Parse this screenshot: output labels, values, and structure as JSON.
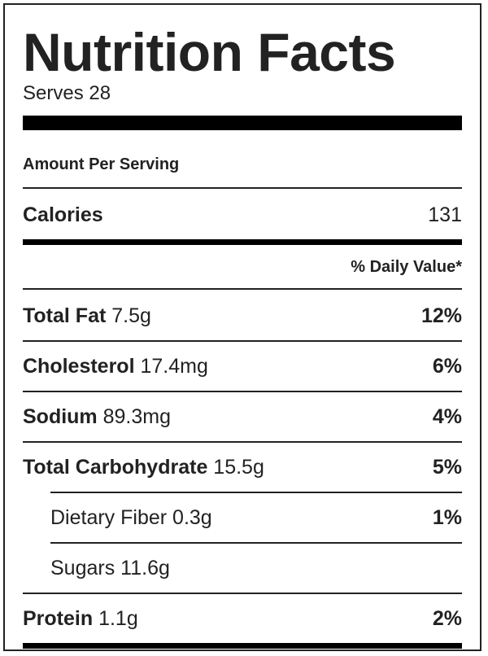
{
  "title": "Nutrition Facts",
  "serves": "Serves 28",
  "amount_per_serving": "Amount Per Serving",
  "calories": {
    "label": "Calories",
    "value": "131"
  },
  "daily_value_header": "% Daily Value*",
  "nutrients": [
    {
      "name": "Total Fat",
      "amount": "7.5g",
      "dv": "12%"
    },
    {
      "name": "Cholesterol",
      "amount": "17.4mg",
      "dv": "6%"
    },
    {
      "name": "Sodium",
      "amount": "89.3mg",
      "dv": "4%"
    },
    {
      "name": "Total Carbohydrate",
      "amount": "15.5g",
      "dv": "5%"
    },
    {
      "name": "Dietary Fiber",
      "amount": "0.3g",
      "dv": "1%"
    },
    {
      "name": "Sugars",
      "amount": "11.6g",
      "dv": ""
    },
    {
      "name": "Protein",
      "amount": "1.1g",
      "dv": "2%"
    }
  ]
}
